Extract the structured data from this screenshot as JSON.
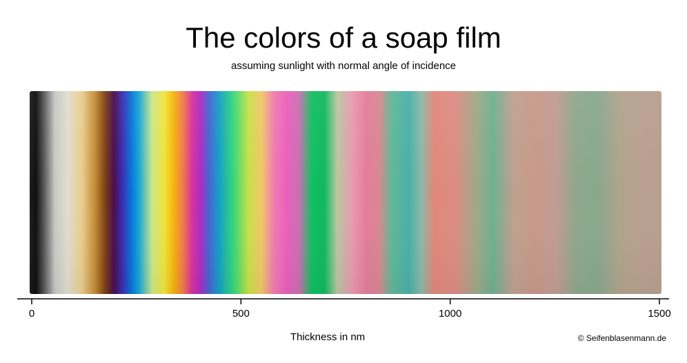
{
  "chart_data": {
    "type": "heatmap",
    "title": "The colors of a soap film",
    "subtitle": "assuming sunlight with normal angle of incidence",
    "xlabel": "Thickness in nm",
    "xlim": [
      0,
      1500
    ],
    "x_ticks": [
      0,
      500,
      1000,
      1500
    ],
    "tick_labels": [
      "0",
      "500",
      "1000",
      "1500"
    ],
    "color_stops": [
      {
        "x": 0,
        "color": "#1e1e1e"
      },
      {
        "x": 15,
        "color": "#0f0f0f"
      },
      {
        "x": 35,
        "color": "#5c5c5c"
      },
      {
        "x": 60,
        "color": "#c7c9c5"
      },
      {
        "x": 90,
        "color": "#e0ddcf"
      },
      {
        "x": 125,
        "color": "#e9cc8c"
      },
      {
        "x": 155,
        "color": "#c48c36"
      },
      {
        "x": 180,
        "color": "#7a3f12"
      },
      {
        "x": 200,
        "color": "#4a0d4e"
      },
      {
        "x": 220,
        "color": "#3b2db0"
      },
      {
        "x": 240,
        "color": "#0a6fd6"
      },
      {
        "x": 260,
        "color": "#18a8d8"
      },
      {
        "x": 290,
        "color": "#c9e68a"
      },
      {
        "x": 320,
        "color": "#f0e43a"
      },
      {
        "x": 340,
        "color": "#f5b90f"
      },
      {
        "x": 365,
        "color": "#f07848"
      },
      {
        "x": 385,
        "color": "#d8339e"
      },
      {
        "x": 405,
        "color": "#b02ac0"
      },
      {
        "x": 425,
        "color": "#4a62d2"
      },
      {
        "x": 450,
        "color": "#14a0c8"
      },
      {
        "x": 485,
        "color": "#38d878"
      },
      {
        "x": 520,
        "color": "#c8e048"
      },
      {
        "x": 550,
        "color": "#f0c868"
      },
      {
        "x": 580,
        "color": "#f07cb0"
      },
      {
        "x": 610,
        "color": "#ea60bc"
      },
      {
        "x": 640,
        "color": "#c870b0"
      },
      {
        "x": 670,
        "color": "#10c060"
      },
      {
        "x": 700,
        "color": "#10b860"
      },
      {
        "x": 730,
        "color": "#b8c8a0"
      },
      {
        "x": 765,
        "color": "#e89ab0"
      },
      {
        "x": 800,
        "color": "#e47c9c"
      },
      {
        "x": 830,
        "color": "#d88890"
      },
      {
        "x": 860,
        "color": "#60b898"
      },
      {
        "x": 900,
        "color": "#48b0a8"
      },
      {
        "x": 930,
        "color": "#8cb8a8"
      },
      {
        "x": 960,
        "color": "#e08878"
      },
      {
        "x": 1010,
        "color": "#dc8c84"
      },
      {
        "x": 1060,
        "color": "#a0a888"
      },
      {
        "x": 1100,
        "color": "#70b090"
      },
      {
        "x": 1150,
        "color": "#c0a090"
      },
      {
        "x": 1200,
        "color": "#c89888"
      },
      {
        "x": 1250,
        "color": "#c09c94"
      },
      {
        "x": 1300,
        "color": "#8ca88c"
      },
      {
        "x": 1350,
        "color": "#88a88e"
      },
      {
        "x": 1400,
        "color": "#b0a48c"
      },
      {
        "x": 1450,
        "color": "#b8a090"
      },
      {
        "x": 1500,
        "color": "#b89e90"
      }
    ],
    "grid": false
  },
  "credit": "© Seifenblasenmann.de"
}
